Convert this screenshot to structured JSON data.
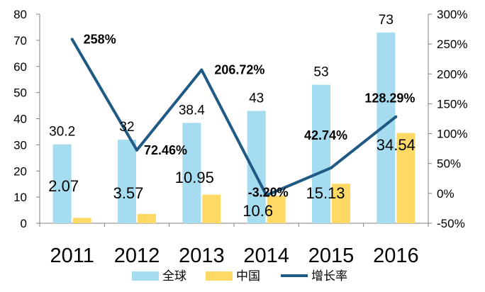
{
  "chart_data": {
    "type": "bar",
    "categories": [
      "2011",
      "2012",
      "2013",
      "2014",
      "2015",
      "2016"
    ],
    "series": [
      {
        "name": "全球",
        "kind": "bar",
        "axis": "left",
        "color": "#a6dcf0",
        "values": [
          30.2,
          32,
          38.4,
          43,
          53,
          73
        ],
        "labels": [
          "30.2",
          "32",
          "38.4",
          "43",
          "53",
          "73"
        ]
      },
      {
        "name": "中国",
        "kind": "bar",
        "axis": "left",
        "color": "#ffd966",
        "values": [
          2.07,
          3.57,
          10.95,
          10.6,
          15.13,
          34.54
        ],
        "labels": [
          "2.07",
          "3.57",
          "10.95",
          "10.6",
          "15.13",
          "34.54"
        ]
      },
      {
        "name": "增长率",
        "kind": "line",
        "axis": "right",
        "color": "#1f5a85",
        "values": [
          258,
          72.46,
          206.72,
          -3.2,
          42.74,
          128.29
        ],
        "labels": [
          "258%",
          "72.46%",
          "206.72%",
          "-3.20%",
          "42.74%",
          "128.29%"
        ]
      }
    ],
    "yleft": {
      "lim": [
        0,
        80
      ],
      "ticks": [
        "0",
        "10",
        "20",
        "30",
        "40",
        "50",
        "60",
        "70",
        "80"
      ]
    },
    "yright": {
      "lim": [
        -50,
        300
      ],
      "ticks": [
        "-50%",
        "0%",
        "50%",
        "100%",
        "150%",
        "200%",
        "250%",
        "300%"
      ]
    },
    "legend": [
      "全球",
      "中国",
      "增长率"
    ],
    "legend_position": "bottom",
    "grid": false
  }
}
